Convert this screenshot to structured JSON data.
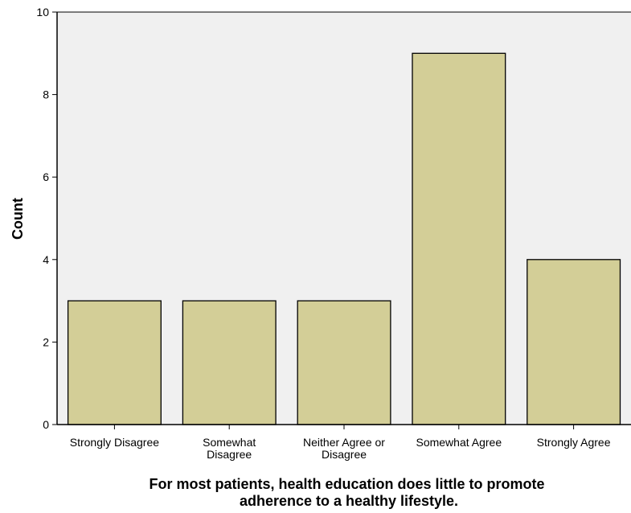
{
  "chart_data": {
    "type": "bar",
    "categories": [
      [
        "Strongly Disagree"
      ],
      [
        "Somewhat",
        "Disagree"
      ],
      [
        "Neither Agree or",
        "Disagree"
      ],
      [
        "Somewhat Agree"
      ],
      [
        "Strongly Agree"
      ]
    ],
    "values": [
      3,
      3,
      3,
      9,
      4
    ],
    "title": "",
    "xlabel": [
      "For most patients, health education does little to promote",
      "adherence to a healthy lifestyle."
    ],
    "ylabel": "Count",
    "ylim": [
      0,
      10
    ],
    "yticks": [
      0,
      2,
      4,
      6,
      8,
      10
    ],
    "grid": false,
    "colors": {
      "bar_fill": "#d3ce97",
      "bar_stroke": "#000000",
      "plot_background": "#f0f0f0"
    }
  }
}
